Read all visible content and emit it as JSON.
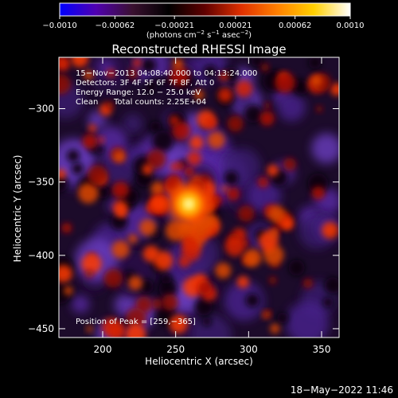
{
  "colorbar": {
    "ticks": [
      "−0.0010",
      "−0.00062",
      "−0.00021",
      "0.00021",
      "0.00062",
      "0.0010"
    ],
    "tick_values": [
      -0.001,
      -0.00062,
      -0.00021,
      0.00021,
      0.00062,
      0.001
    ],
    "range": [
      -0.001,
      0.001
    ],
    "units_main": "(photons cm",
    "units_exp1": "−2",
    "units_mid": " s",
    "units_exp2": "−1",
    "units_end": " asec",
    "units_exp3": "−2",
    "units_close": ")",
    "colors": [
      "#0000ff",
      "#5000b0",
      "#3a1030",
      "#000000",
      "#600000",
      "#e03000",
      "#ff8000",
      "#ffd000",
      "#ffffff"
    ]
  },
  "chart_data": {
    "type": "heatmap",
    "title": "Reconstructed RHESSI Image",
    "xlabel": "Heliocentric X (arcsec)",
    "ylabel": "Heliocentric Y (arcsec)",
    "xlim": [
      170,
      362
    ],
    "ylim": [
      -456,
      -265
    ],
    "x_ticks": [
      200,
      250,
      300,
      350
    ],
    "y_ticks": [
      -300,
      -350,
      -400,
      -450
    ],
    "x_tick_labels": [
      "200",
      "250",
      "300",
      "350"
    ],
    "y_tick_labels": [
      "−300",
      "−350",
      "−400",
      "−450"
    ],
    "peak": [
      259,
      -365
    ],
    "annotations": {
      "time": "15−Nov−2013 04:08:40.000 to 04:13:24.000",
      "detectors": "Detectors: 3F 4F 5F 6F 7F 8F, Att 0",
      "energy": "Energy Range: 12.0 − 25.0 keV",
      "method": "Clean",
      "counts": "Total counts: 2.25E+04",
      "peak_label": "Position of Peak = [259,−365]"
    }
  },
  "footer": {
    "date": "18−May−2022 11:46"
  }
}
